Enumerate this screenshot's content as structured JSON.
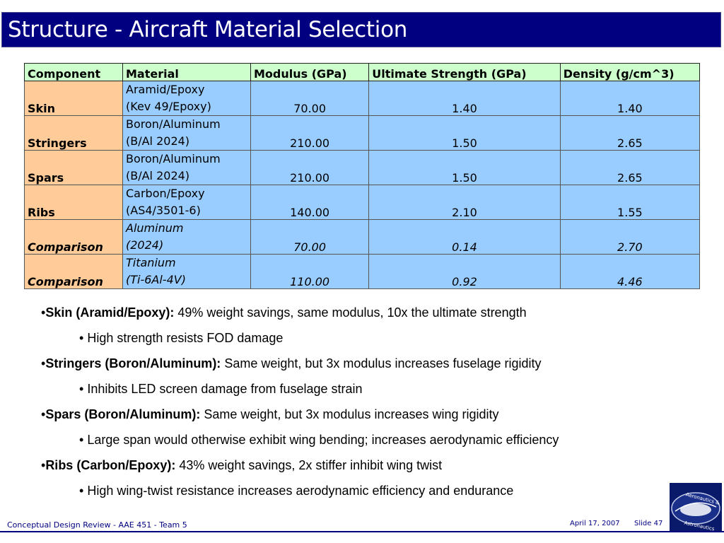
{
  "title": "Structure - Aircraft Material Selection",
  "table": {
    "headers": [
      "Component",
      "Material",
      "Modulus (GPa)",
      "Ultimate Strength (GPa)",
      "Density (g/cm^3)"
    ],
    "rows": [
      {
        "component": "Skin",
        "material_line1": "Aramid/Epoxy",
        "material_line2": "(Kev 49/Epoxy)",
        "modulus": "70.00",
        "strength": "1.40",
        "density": "1.40"
      },
      {
        "component": "Stringers",
        "material_line1": "Boron/Aluminum",
        "material_line2": "(B/Al 2024)",
        "modulus": "210.00",
        "strength": "1.50",
        "density": "2.65"
      },
      {
        "component": "Spars",
        "material_line1": "Boron/Aluminum",
        "material_line2": "(B/Al 2024)",
        "modulus": "210.00",
        "strength": "1.50",
        "density": "2.65"
      },
      {
        "component": "Ribs",
        "material_line1": "Carbon/Epoxy",
        "material_line2": "(AS4/3501-6)",
        "modulus": "140.00",
        "strength": "2.10",
        "density": "1.55"
      },
      {
        "component": "Comparison",
        "material_line1": "Aluminum",
        "material_line2": "(2024)",
        "modulus": "70.00",
        "strength": "0.14",
        "density": "2.70"
      },
      {
        "component": "Comparison",
        "material_line1": "Titanium",
        "material_line2": "(Ti-6Al-4V)",
        "modulus": "110.00",
        "strength": "0.92",
        "density": "4.46"
      }
    ]
  },
  "bullets": [
    {
      "lead": "Skin (Aramid/Epoxy):",
      "text": " 49% weight savings, same modulus, 10x the ultimate strength",
      "sub": "High strength resists FOD damage"
    },
    {
      "lead": "Stringers (Boron/Aluminum):",
      "text": " Same weight, but 3x modulus increases fuselage rigidity",
      "sub": "Inhibits LED screen damage from fuselage strain"
    },
    {
      "lead": "Spars (Boron/Aluminum):",
      "text": " Same weight, but 3x modulus increases wing rigidity",
      "sub": "Large span would otherwise exhibit wing bending; increases aerodynamic efficiency"
    },
    {
      "lead": "Ribs (Carbon/Epoxy):",
      "text": " 43% weight savings, 2x stiffer inhibit wing twist",
      "sub": "High wing-twist resistance increases aerodynamic efficiency and endurance"
    }
  ],
  "bullet_glyph": "•",
  "footer": {
    "left": "Conceptual Design Review - AAE 451 - Team 5",
    "date": "April 17, 2007",
    "slide": "Slide 47",
    "logo_text_top": "Aeronautics &",
    "logo_text_bottom": "Astronautics"
  },
  "colors": {
    "title_bg": "#000080",
    "header_bg": "#ccffcc",
    "component_bg": "#ffcc99",
    "cell_bg": "#99ccff"
  }
}
